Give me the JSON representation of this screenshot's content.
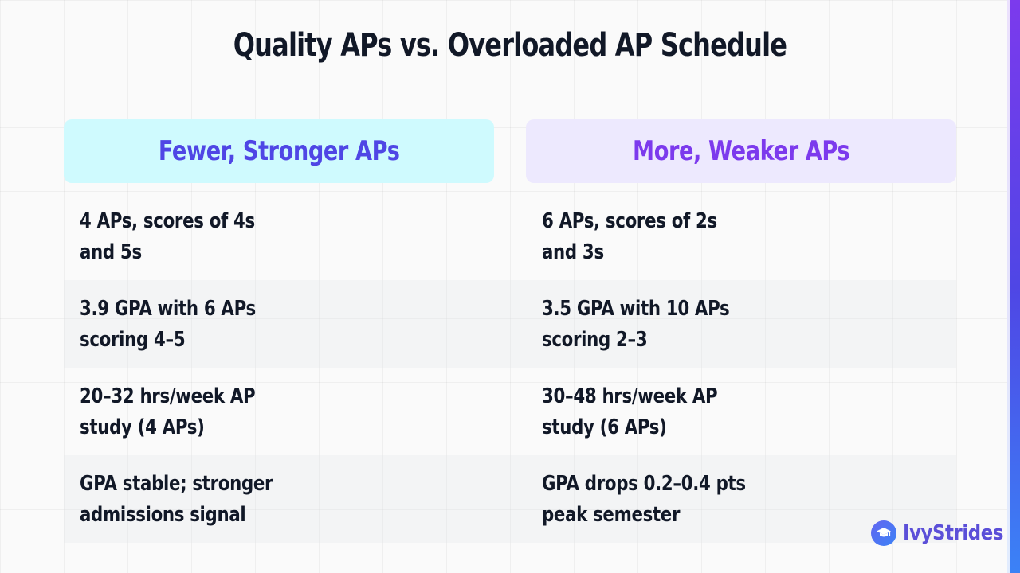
{
  "title": "Quality APs vs. Overloaded AP Schedule",
  "columns": [
    {
      "heading": "Fewer, Stronger APs",
      "color": "#4f46e5",
      "background": "#cffafe"
    },
    {
      "heading": "More, Weaker APs",
      "color": "#7c3aed",
      "background": "#ede9fe"
    }
  ],
  "rows": [
    {
      "left": "4 APs, scores of 4s and 5s",
      "right": "6 APs, scores of 2s and 3s"
    },
    {
      "left": "3.9 GPA with 6 APs scoring 4–5",
      "right": "3.5 GPA with 10 APs scoring 2–3"
    },
    {
      "left": "20–32 hrs/week AP study (4 APs)",
      "right": "30–48 hrs/week AP study (6 APs)"
    },
    {
      "left": "GPA stable; stronger admissions signal",
      "right": "GPA drops 0.2–0.4 pts peak semester"
    }
  ],
  "brand": {
    "name": "IvyStrides",
    "icon": "graduation-cap-icon",
    "color": "#5b4fd8"
  }
}
